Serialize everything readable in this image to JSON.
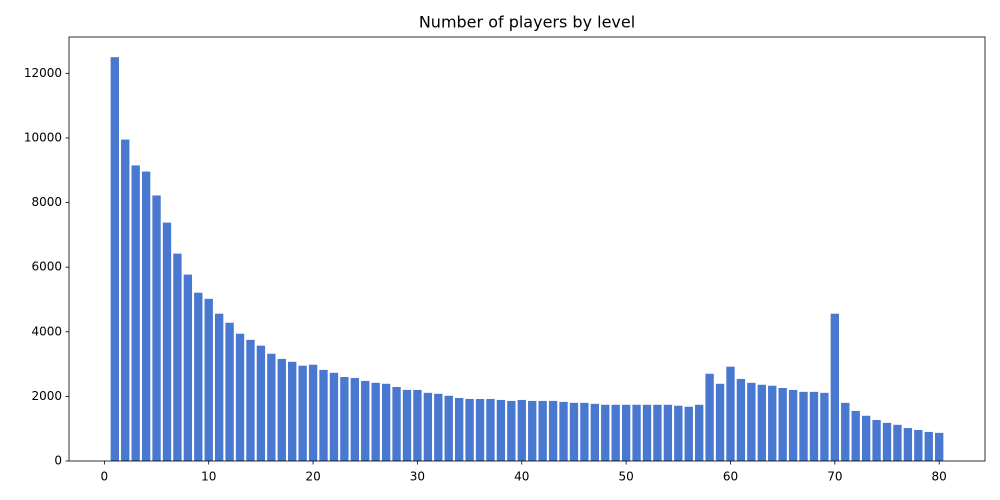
{
  "chart_data": {
    "type": "bar",
    "title": "Number of players by level",
    "x": [
      1,
      2,
      3,
      4,
      5,
      6,
      7,
      8,
      9,
      10,
      11,
      12,
      13,
      14,
      15,
      16,
      17,
      18,
      19,
      20,
      21,
      22,
      23,
      24,
      25,
      26,
      27,
      28,
      29,
      30,
      31,
      32,
      33,
      34,
      35,
      36,
      37,
      38,
      39,
      40,
      41,
      42,
      43,
      44,
      45,
      46,
      47,
      48,
      49,
      50,
      51,
      52,
      53,
      54,
      55,
      56,
      57,
      58,
      59,
      60,
      61,
      62,
      63,
      64,
      65,
      66,
      67,
      68,
      69,
      70,
      71,
      72,
      73,
      74,
      75,
      76,
      77,
      78,
      79,
      80
    ],
    "values": [
      12500,
      9950,
      9150,
      8960,
      8220,
      7380,
      6420,
      5770,
      5210,
      5020,
      4560,
      4280,
      3940,
      3750,
      3570,
      3320,
      3160,
      3070,
      2950,
      2980,
      2820,
      2730,
      2600,
      2570,
      2480,
      2420,
      2390,
      2290,
      2200,
      2200,
      2110,
      2080,
      2020,
      1950,
      1920,
      1920,
      1920,
      1890,
      1860,
      1890,
      1860,
      1860,
      1860,
      1830,
      1800,
      1800,
      1770,
      1740,
      1740,
      1740,
      1740,
      1740,
      1740,
      1740,
      1710,
      1680,
      1740,
      2700,
      2390,
      2920,
      2540,
      2420,
      2360,
      2330,
      2260,
      2200,
      2140,
      2140,
      2110,
      4560,
      1800,
      1550,
      1400,
      1270,
      1180,
      1120,
      1020,
      960,
      900,
      870
    ],
    "color": "#4878d0",
    "xlim": [
      -3.39,
      84.39
    ],
    "xticks": [
      0,
      10,
      20,
      30,
      40,
      50,
      60,
      70,
      80
    ],
    "ylim": [
      0,
      13125
    ],
    "yticks": [
      0,
      2000,
      4000,
      6000,
      8000,
      10000,
      12000
    ]
  }
}
